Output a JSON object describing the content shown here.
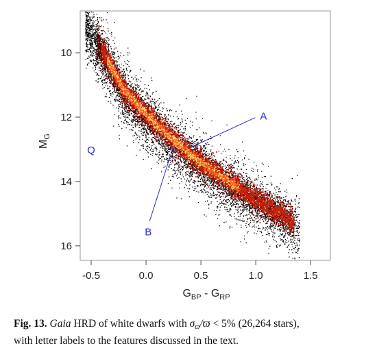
{
  "chart_data": {
    "type": "scatter",
    "title": "",
    "xlabel": "G_BP - G_RP",
    "xlabel_main": "G",
    "xlabel_sub1": "BP",
    "xlabel_mid": " - G",
    "xlabel_sub2": "RP",
    "ylabel": "M_G",
    "ylabel_main": "M",
    "ylabel_sub": "G",
    "xlim": [
      -0.6,
      1.68
    ],
    "ylim": [
      16.45,
      8.7
    ],
    "y_inverted": true,
    "xticks": [
      -0.5,
      0.0,
      0.5,
      1.0,
      1.5
    ],
    "xtick_labels": [
      "-0.5",
      "0.0",
      "0.5",
      "1.0",
      "1.5"
    ],
    "yticks": [
      10,
      12,
      14,
      16
    ],
    "ytick_labels": [
      "10",
      "12",
      "14",
      "16"
    ],
    "grid": false,
    "density_colormap": [
      "#000000",
      "#5a0000",
      "#c8220a",
      "#ff5a1e",
      "#ffd06a"
    ],
    "sequence_ridge": {
      "x": [
        -0.55,
        -0.4,
        -0.2,
        0.0,
        0.2,
        0.4,
        0.6,
        0.8,
        1.0,
        1.2,
        1.35
      ],
      "y": [
        9.0,
        9.95,
        11.15,
        11.9,
        12.55,
        13.15,
        13.65,
        14.1,
        14.55,
        14.95,
        15.25
      ]
    },
    "annotations": [
      {
        "label": "A",
        "label_x": 1.07,
        "label_y": 11.95,
        "target_x": 0.4,
        "target_y": 12.95
      },
      {
        "label": "B",
        "label_x": 0.02,
        "label_y": 15.55,
        "target_x": 0.25,
        "target_y": 12.9
      },
      {
        "label": "Q",
        "label_x": -0.5,
        "label_y": 13.0
      }
    ]
  },
  "caption": {
    "fig_label": "Fig. 13.",
    "gaia": "Gaia",
    "text_before_formula": " HRD of white dwarfs with ",
    "sigma": "σ",
    "sigma_sub": "ϖ",
    "slash_varpi": "/ϖ",
    "formula_rest": " < 5% (26,264 stars),",
    "line2": "with letter labels to the features discussed in the text."
  }
}
